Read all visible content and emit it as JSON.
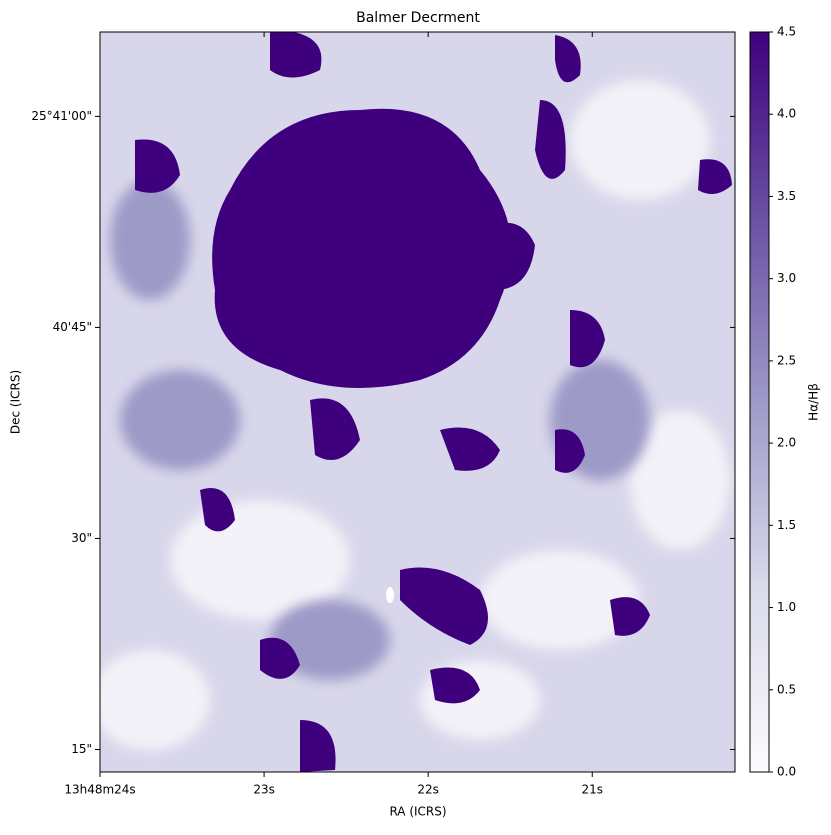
{
  "chart_data": {
    "type": "image",
    "title": "Balmer Decrment",
    "x_label": "RA (ICRS)",
    "y_label": "Dec (ICRS)",
    "colorbar_label": "Hα/Hβ",
    "xlim": [
      24.0,
      20.13
    ],
    "xticks": [
      {
        "value": 24,
        "label": "13h48m24s"
      },
      {
        "value": 23,
        "label": "23s"
      },
      {
        "value": 22,
        "label": "22s"
      },
      {
        "value": 21,
        "label": "21s"
      }
    ],
    "ylim": [
      13.4,
      66.0
    ],
    "yticks": [
      {
        "value": 60,
        "label": "25°41'00\""
      },
      {
        "value": 45,
        "label": "40'45\""
      },
      {
        "value": 30,
        "label": "30\""
      },
      {
        "value": 15,
        "label": "15\""
      }
    ],
    "clim": [
      0,
      4.5
    ],
    "cticks": [
      {
        "value": 0,
        "label": "0.0"
      },
      {
        "value": 0.5,
        "label": "0.5"
      },
      {
        "value": 1,
        "label": "1.0"
      },
      {
        "value": 1.5,
        "label": "1.5"
      },
      {
        "value": 2,
        "label": "2.0"
      },
      {
        "value": 2.5,
        "label": "2.5"
      },
      {
        "value": 3,
        "label": "3.0"
      },
      {
        "value": 3.5,
        "label": "3.5"
      },
      {
        "value": 4,
        "label": "4.0"
      },
      {
        "value": 4.5,
        "label": "4.5"
      }
    ],
    "colormap": [
      "#fcfbfd",
      "#dadaeb",
      "#9e9ac8",
      "#6a51a3",
      "#3f007d"
    ]
  }
}
